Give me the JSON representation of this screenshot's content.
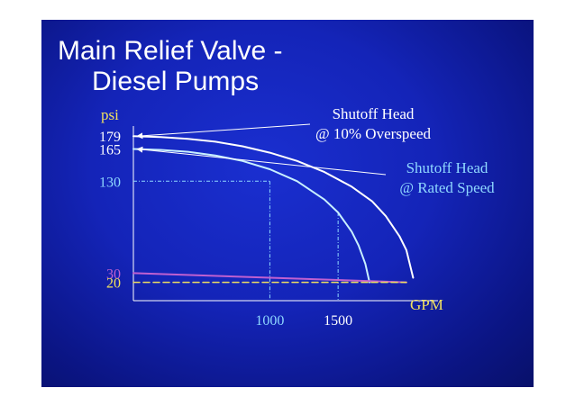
{
  "slide": {
    "title_line1": "Main Relief Valve -",
    "title_line2": "Diesel Pumps"
  },
  "colors": {
    "background": "#1424b8",
    "title": "#ffffff",
    "overspeed_curve": "#ffffff",
    "rated_curve": "#c8f0ff",
    "pressure_30": "#c060d0",
    "pressure_20": "#f0e060",
    "axis": "#ffffff",
    "label_yellow": "#f0e060",
    "label_blue": "#8fd8ff"
  },
  "chart_data": {
    "type": "line",
    "title": "",
    "ylabel": "psi",
    "xlabel": "GPM",
    "ylim": [
      0,
      190
    ],
    "xlim": [
      0,
      2100
    ],
    "y_ticks": [
      {
        "value": 179,
        "label": "179",
        "color": "#ffffff"
      },
      {
        "value": 165,
        "label": "165",
        "color": "#ffffff"
      },
      {
        "value": 130,
        "label": "130",
        "color": "#8fd8ff"
      },
      {
        "value": 30,
        "label": "30",
        "color": "#c060d0"
      },
      {
        "value": 20,
        "label": "20",
        "color": "#f0e060"
      }
    ],
    "x_ticks": [
      {
        "value": 1000,
        "label": "1000",
        "color": "#8fd8ff"
      },
      {
        "value": 1500,
        "label": "1500",
        "color": "#ffffff"
      }
    ],
    "series": [
      {
        "id": "overspeed",
        "color": "#ffffff",
        "x": [
          0,
          200,
          400,
          600,
          800,
          1000,
          1200,
          1400,
          1600,
          1750,
          1850,
          1950,
          2000,
          2050
        ],
        "y": [
          179,
          178,
          176,
          173,
          168,
          161,
          152,
          140,
          124,
          108,
          92,
          70,
          55,
          25
        ]
      },
      {
        "id": "rated",
        "color": "#c8f0ff",
        "x": [
          0,
          200,
          400,
          600,
          800,
          1000,
          1200,
          1400,
          1500,
          1600,
          1650,
          1700,
          1730
        ],
        "y": [
          165,
          164,
          162,
          158,
          152,
          143,
          130,
          110,
          96,
          75,
          60,
          40,
          20
        ]
      },
      {
        "id": "relief-30",
        "color": "#c060d0",
        "x": [
          0,
          2000
        ],
        "y": [
          30,
          20
        ]
      },
      {
        "id": "relief-20",
        "color": "#f0e060",
        "dashed": true,
        "x": [
          0,
          2000
        ],
        "y": [
          20,
          20
        ]
      }
    ],
    "reference_lines": [
      {
        "id": "h-130",
        "x": [
          0,
          1000
        ],
        "y": [
          130,
          130
        ]
      },
      {
        "id": "v-1000",
        "x": [
          1000,
          1000
        ],
        "y": [
          130,
          0
        ]
      },
      {
        "id": "v-1500",
        "x": [
          1500,
          1500
        ],
        "y": [
          96,
          0
        ]
      }
    ],
    "annotations": [
      {
        "id": "shutoff-overspeed",
        "line1": "Shutoff Head",
        "line2": "@ 10% Overspeed",
        "color": "#ffffff",
        "points_to": {
          "x": 0,
          "y": 179
        }
      },
      {
        "id": "shutoff-rated",
        "line1": "Shutoff Head",
        "line2": "@ Rated Speed",
        "color": "#8fd8ff",
        "points_to": {
          "x": 0,
          "y": 165
        }
      }
    ]
  }
}
